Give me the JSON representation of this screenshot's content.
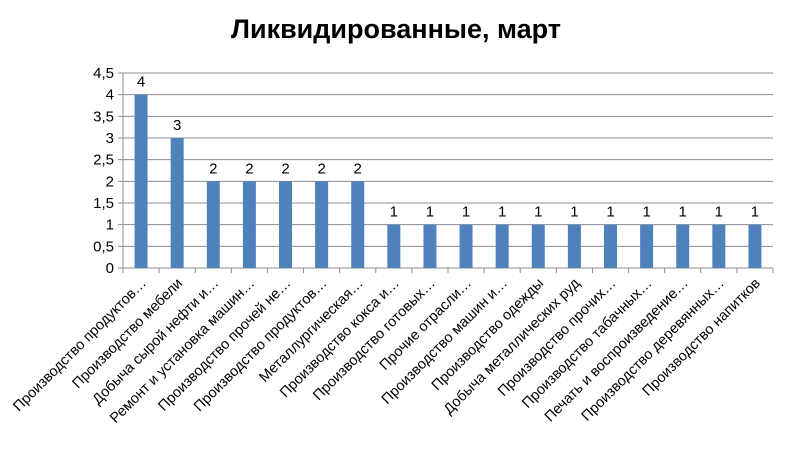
{
  "chart_data": {
    "type": "bar",
    "title": "Ликвидированные, март",
    "xlabel": "",
    "ylabel": "",
    "ylim": [
      0,
      4.5
    ],
    "ytick_labels": [
      "0",
      "0,5",
      "1",
      "1,5",
      "2",
      "2,5",
      "3",
      "3,5",
      "4",
      "4,5"
    ],
    "ytick_values": [
      0,
      0.5,
      1,
      1.5,
      2,
      2.5,
      3,
      3.5,
      4,
      4.5
    ],
    "grid": true,
    "legend": "none",
    "bar_color": "#4f81bd",
    "categories": [
      "Производство продуктов…",
      "Производство мебели",
      "Добыча сырой нефти и…",
      "Ремонт и установка машин…",
      "Производство прочей не…",
      "Производство продуктов…",
      "Металлургическая…",
      "Производство кокса  и…",
      "Производство готовых…",
      "Прочие отрасли…",
      "Производство машин и…",
      "Производство одежды",
      "Добыча металлических руд",
      "Производство прочих…",
      "Производство табачных…",
      "Печать и воспроизведение…",
      "Производство деревянных…",
      "Производство напитков"
    ],
    "values": [
      4,
      3,
      2,
      2,
      2,
      2,
      2,
      1,
      1,
      1,
      1,
      1,
      1,
      1,
      1,
      1,
      1,
      1
    ],
    "data_labels": [
      "4",
      "3",
      "2",
      "2",
      "2",
      "2",
      "2",
      "1",
      "1",
      "1",
      "1",
      "1",
      "1",
      "1",
      "1",
      "1",
      "1",
      "1"
    ]
  }
}
